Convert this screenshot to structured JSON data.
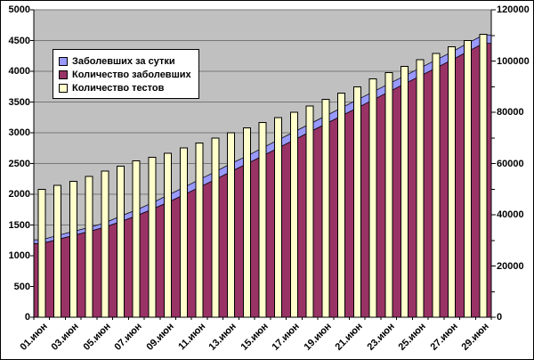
{
  "chart_data": {
    "type": "combo",
    "title": "",
    "categories": [
      "01.июн",
      "02.июн",
      "03.июн",
      "04.июн",
      "05.июн",
      "06.июн",
      "07.июн",
      "08.июн",
      "09.июн",
      "10.июн",
      "11.июн",
      "12.июн",
      "13.июн",
      "14.июн",
      "15.июн",
      "16.июн",
      "17.июн",
      "18.июн",
      "19.июн",
      "20.июн",
      "21.июн",
      "22.июн",
      "23.июн",
      "24.июн",
      "25.июн",
      "26.июн",
      "27.июн",
      "28.июн",
      "29.июн"
    ],
    "series": [
      {
        "name": "Заболевших за сутки",
        "chart_type": "area",
        "stacked_on": "Количество заболевших",
        "axis": "left",
        "color": "#9999FF",
        "values": [
          60,
          65,
          65,
          65,
          70,
          90,
          95,
          105,
          115,
          120,
          125,
          125,
          130,
          125,
          130,
          130,
          130,
          130,
          130,
          130,
          130,
          130,
          130,
          130,
          130,
          130,
          130,
          135,
          135
        ]
      },
      {
        "name": "Количество заболевших",
        "chart_type": "area",
        "axis": "left",
        "color": "#993366",
        "values": [
          1200,
          1265,
          1330,
          1395,
          1465,
          1555,
          1650,
          1755,
          1870,
          1990,
          2115,
          2240,
          2370,
          2495,
          2625,
          2755,
          2885,
          3015,
          3145,
          3275,
          3405,
          3535,
          3665,
          3795,
          3925,
          4055,
          4185,
          4320,
          4455
        ]
      },
      {
        "name": "Количество тестов",
        "chart_type": "bar",
        "axis": "right",
        "color": "#FFFFCC",
        "values": [
          50000,
          51500,
          53000,
          55000,
          57000,
          59000,
          61000,
          62500,
          64000,
          66000,
          68000,
          70000,
          72000,
          74000,
          76000,
          78000,
          80000,
          82500,
          85000,
          87500,
          90000,
          93000,
          95500,
          98000,
          100500,
          103000,
          105500,
          108000,
          110500
        ]
      }
    ],
    "left_axis": {
      "min": 0,
      "max": 5000,
      "step": 500,
      "tick_labels": [
        "0",
        "500",
        "1000",
        "1500",
        "2000",
        "2500",
        "3000",
        "3500",
        "4000",
        "4500",
        "5000"
      ]
    },
    "right_axis": {
      "min": 0,
      "max": 120000,
      "step": 20000,
      "minor_step": 10000,
      "tick_labels": [
        "0",
        "20000",
        "40000",
        "60000",
        "80000",
        "100000",
        "120000"
      ]
    },
    "x_axis": {
      "labeled_every": 2,
      "tick_labels": [
        "01.июн",
        "03.июн",
        "05.июн",
        "07.июн",
        "09.июн",
        "11.июн",
        "13.июн",
        "15.июн",
        "17.июн",
        "19.июн",
        "21.июн",
        "23.июн",
        "25.июн",
        "27.июн",
        "29.июн"
      ]
    },
    "legend_position": "top-left-inside",
    "grid": true,
    "colors": {
      "plot_bg": "#C0C0C0",
      "grid_line": "#777777",
      "axis_line": "#000000",
      "series_border": "#000000",
      "chart_bg": "#FFFFFF",
      "text": "#000000"
    }
  }
}
